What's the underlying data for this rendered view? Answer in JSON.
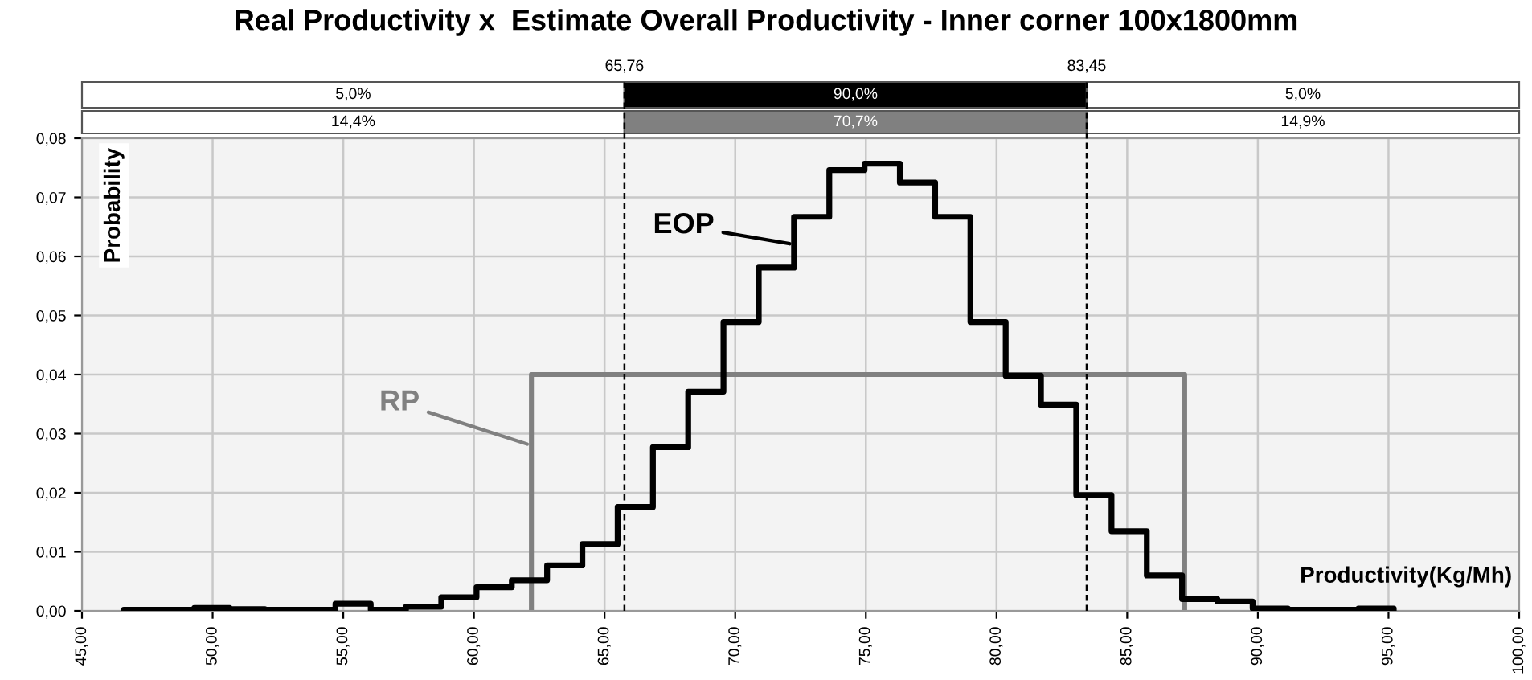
{
  "chart_data": {
    "type": "step",
    "title": "Real Productivity x  Estimate Overall Productivity - Inner corner 100x1800mm",
    "xlabel": "Productivity(Kg/Mh)",
    "ylabel": "Probability",
    "series": [
      {
        "name": "EOP",
        "color": "#000000",
        "x": [
          46.6,
          46.6,
          47.95,
          49.3,
          50.65,
          52.0,
          53.35,
          54.7,
          56.05,
          57.4,
          58.75,
          60.1,
          61.45,
          62.8,
          64.15,
          65.5,
          66.85,
          68.2,
          69.55,
          70.9,
          72.25,
          73.6,
          74.95,
          76.3,
          77.65,
          79.0,
          80.35,
          81.7,
          83.05,
          84.4,
          85.75,
          87.1,
          88.45,
          89.8,
          91.15,
          92.5,
          93.85,
          95.2
        ],
        "values": [
          0,
          0.0002,
          0.0002,
          0.0005,
          0.0003,
          0.0002,
          0.0002,
          0.0012,
          0.0002,
          0.0007,
          0.0023,
          0.004,
          0.0052,
          0.0077,
          0.0113,
          0.0176,
          0.0277,
          0.0371,
          0.0489,
          0.0581,
          0.0667,
          0.0746,
          0.0757,
          0.0725,
          0.0667,
          0.0489,
          0.0398,
          0.0349,
          0.0196,
          0.0135,
          0.006,
          0.002,
          0.0016,
          0.0004,
          0.0002,
          0.0002,
          0.0004,
          0
        ]
      },
      {
        "name": "RP",
        "color": "#808080",
        "x": [
          62.2,
          62.2,
          87.2
        ],
        "values": [
          0,
          0.04,
          0
        ]
      }
    ],
    "ref_lines": [
      {
        "axis": "x",
        "value": 65.76,
        "label": "65,76",
        "line_style": "dashed",
        "color": "#000000"
      },
      {
        "axis": "x",
        "value": 83.45,
        "label": "83,45",
        "line_style": "dashed",
        "color": "#000000"
      }
    ],
    "annotations": [
      "5,0%",
      "90,0%",
      "5,0%",
      "14,4%",
      "70,7%",
      "14,9%"
    ],
    "xlim": [
      45,
      100
    ],
    "xticks": [
      {
        "value": 45,
        "label": "45,00"
      },
      {
        "value": 50,
        "label": "50,00"
      },
      {
        "value": 55,
        "label": "55,00"
      },
      {
        "value": 60,
        "label": "60,00"
      },
      {
        "value": 65,
        "label": "65,00"
      },
      {
        "value": 70,
        "label": "70,00"
      },
      {
        "value": 75,
        "label": "75,00"
      },
      {
        "value": 80,
        "label": "80,00"
      },
      {
        "value": 85,
        "label": "85,00"
      },
      {
        "value": 90,
        "label": "90,00"
      },
      {
        "value": 95,
        "label": "95,00"
      },
      {
        "value": 100,
        "label": "100,00"
      }
    ],
    "ylim": [
      0,
      0.08
    ],
    "yticks": [
      {
        "value": 0,
        "label": "0,00"
      },
      {
        "value": 0.01,
        "label": "0,01"
      },
      {
        "value": 0.02,
        "label": "0,02"
      },
      {
        "value": 0.03,
        "label": "0,03"
      },
      {
        "value": 0.04,
        "label": "0,04"
      },
      {
        "value": 0.05,
        "label": "0,05"
      },
      {
        "value": 0.06,
        "label": "0,06"
      },
      {
        "value": 0.07,
        "label": "0,07"
      },
      {
        "value": 0.08,
        "label": "0,08"
      }
    ],
    "grid": true
  }
}
